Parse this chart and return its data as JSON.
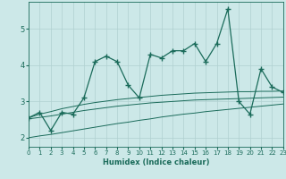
{
  "title": "",
  "xlabel": "Humidex (Indice chaleur)",
  "ylabel": "",
  "bg_color": "#cce8e8",
  "grid_color": "#b0d0d0",
  "line_color": "#1a6b5a",
  "x_values": [
    0,
    1,
    2,
    3,
    4,
    5,
    6,
    7,
    8,
    9,
    10,
    11,
    12,
    13,
    14,
    15,
    16,
    17,
    18,
    19,
    20,
    21,
    22,
    23
  ],
  "main_y": [
    2.55,
    2.7,
    2.2,
    2.7,
    2.65,
    3.1,
    4.1,
    4.25,
    4.1,
    3.45,
    3.1,
    4.3,
    4.2,
    4.4,
    4.4,
    4.6,
    4.1,
    4.6,
    5.55,
    3.0,
    2.65,
    3.9,
    3.4,
    3.25
  ],
  "upper_band": [
    2.55,
    2.65,
    2.72,
    2.8,
    2.86,
    2.92,
    2.97,
    3.01,
    3.05,
    3.08,
    3.11,
    3.14,
    3.17,
    3.19,
    3.21,
    3.23,
    3.24,
    3.25,
    3.26,
    3.27,
    3.27,
    3.28,
    3.28,
    3.29
  ],
  "mid_band": [
    2.52,
    2.56,
    2.6,
    2.65,
    2.7,
    2.75,
    2.79,
    2.83,
    2.87,
    2.9,
    2.93,
    2.96,
    2.98,
    3.0,
    3.02,
    3.04,
    3.05,
    3.06,
    3.07,
    3.08,
    3.09,
    3.1,
    3.11,
    3.12
  ],
  "lower_band": [
    2.0,
    2.05,
    2.09,
    2.14,
    2.19,
    2.24,
    2.29,
    2.34,
    2.39,
    2.43,
    2.48,
    2.52,
    2.57,
    2.61,
    2.65,
    2.68,
    2.72,
    2.75,
    2.78,
    2.81,
    2.84,
    2.87,
    2.9,
    2.93
  ],
  "ylim": [
    1.75,
    5.75
  ],
  "yticks": [
    2,
    3,
    4,
    5
  ],
  "xlim": [
    0,
    23
  ],
  "xtick_fontsize": 5,
  "ytick_fontsize": 6,
  "xlabel_fontsize": 6,
  "marker": "+",
  "markersize": 4,
  "linewidth": 0.9,
  "band_linewidth": 0.7
}
